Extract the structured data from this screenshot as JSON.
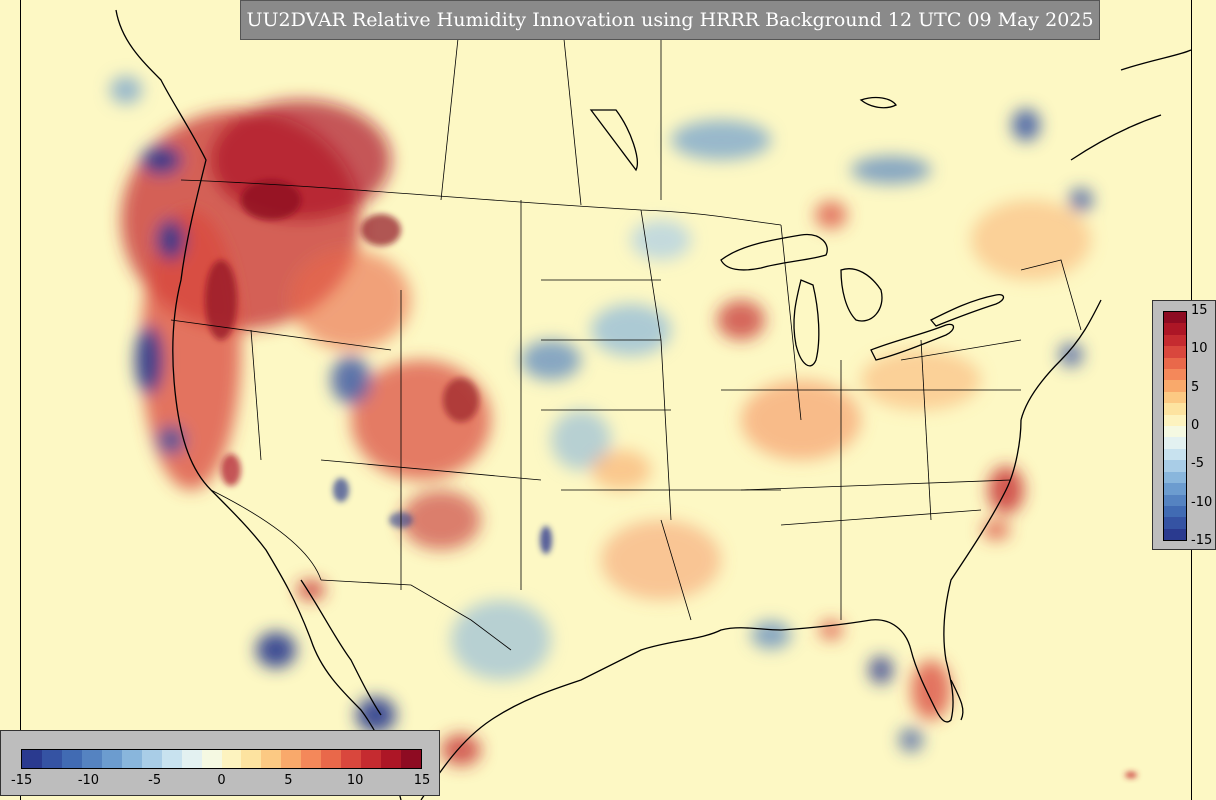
{
  "title": "UU2DVAR Relative Humidity Innovation using HRRR Background 12 UTC 09 May 2025",
  "colorbar": {
    "min": -15,
    "max": 15,
    "ticks_horizontal": [
      "-15",
      "-10",
      "-5",
      "0",
      "5",
      "10",
      "15"
    ],
    "ticks_vertical": [
      "15",
      "10",
      "5",
      "0",
      "-5",
      "-10",
      "-15"
    ],
    "colors": [
      "#2a3a8f",
      "#3553a3",
      "#416bb3",
      "#5583c1",
      "#6c9ccf",
      "#89b6dc",
      "#a9cde7",
      "#c8e2ef",
      "#e3f1f1",
      "#f5f9e2",
      "#fdf3bf",
      "#fde3a0",
      "#fcc983",
      "#f9a96b",
      "#f4885a",
      "#e9684a",
      "#d9473d",
      "#c52b30",
      "#ad1626",
      "#8e0b22"
    ]
  },
  "legend_colors": {
    "dry_innovation": "#2a3a8f",
    "neutral": "#fdf8c4",
    "moist_innovation": "#a50f25"
  }
}
